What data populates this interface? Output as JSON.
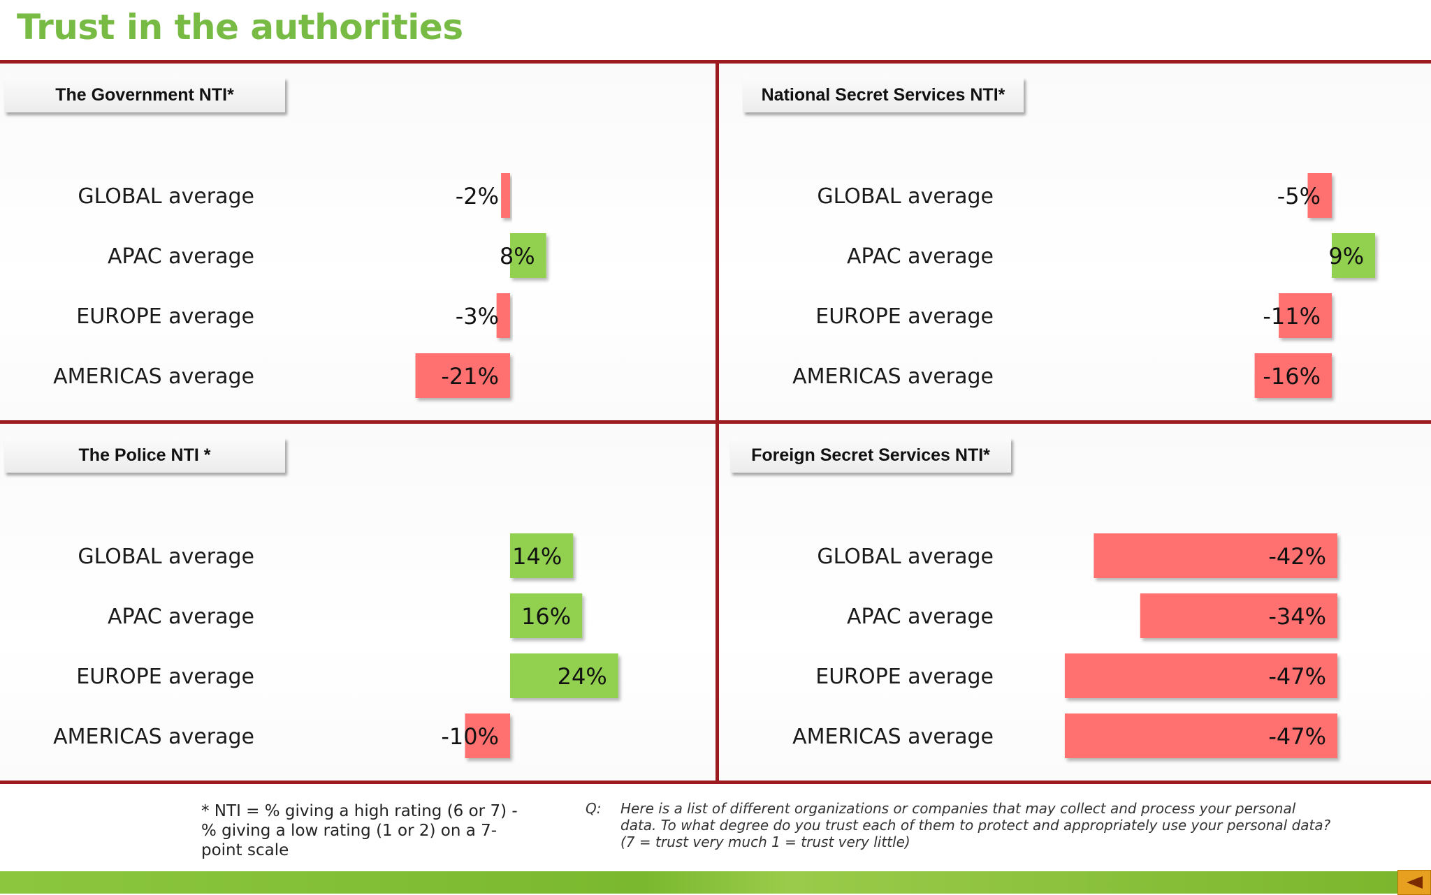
{
  "page": {
    "title": "Trust in the authorities",
    "footnote": "* NTI = % giving a high rating (6 or 7) - % giving a low rating (1 or 2) on a 7-point scale",
    "question_label": "Q:",
    "question_text": "Here is a list of different organizations or companies that may collect and process your personal data.  To what degree do you trust each of them to protect and appropriately use your personal data? (7 = trust very much 1 = trust very little)"
  },
  "colors": {
    "title": "#77bb44",
    "rule": "#9b1b1e",
    "positive": "#92d050",
    "negative": "#ff7070",
    "footer": "#8cc63f",
    "nav": "#e8a020"
  },
  "icons": {
    "nav": "triangle-left-icon"
  },
  "chart_data": [
    {
      "type": "bar",
      "orientation": "horizontal",
      "title": "The Government NTI*",
      "categories": [
        "GLOBAL average",
        "APAC average",
        "EUROPE average",
        "AMERICAS average"
      ],
      "values": [
        -2,
        8,
        -3,
        -21
      ],
      "labels": [
        "-2%",
        "8%",
        "-3%",
        "-21%"
      ],
      "unit": "%"
    },
    {
      "type": "bar",
      "orientation": "horizontal",
      "title": "National Secret Services NTI*",
      "categories": [
        "GLOBAL average",
        "APAC average",
        "EUROPE average",
        "AMERICAS average"
      ],
      "values": [
        -5,
        9,
        -11,
        -16
      ],
      "labels": [
        "-5%",
        "9%",
        "-11%",
        "-16%"
      ],
      "unit": "%"
    },
    {
      "type": "bar",
      "orientation": "horizontal",
      "title": "The Police NTI *",
      "categories": [
        "GLOBAL average",
        "APAC average",
        "EUROPE average",
        "AMERICAS average"
      ],
      "values": [
        14,
        16,
        24,
        -10
      ],
      "labels": [
        "14%",
        "16%",
        "24%",
        "-10%"
      ],
      "unit": "%"
    },
    {
      "type": "bar",
      "orientation": "horizontal",
      "title": "Foreign Secret Services NTI*",
      "categories": [
        "GLOBAL average",
        "APAC average",
        "EUROPE average",
        "AMERICAS average"
      ],
      "values": [
        -42,
        -34,
        -47,
        -47
      ],
      "labels": [
        "-42%",
        "-34%",
        "-47%",
        "-47%"
      ],
      "unit": "%"
    }
  ]
}
